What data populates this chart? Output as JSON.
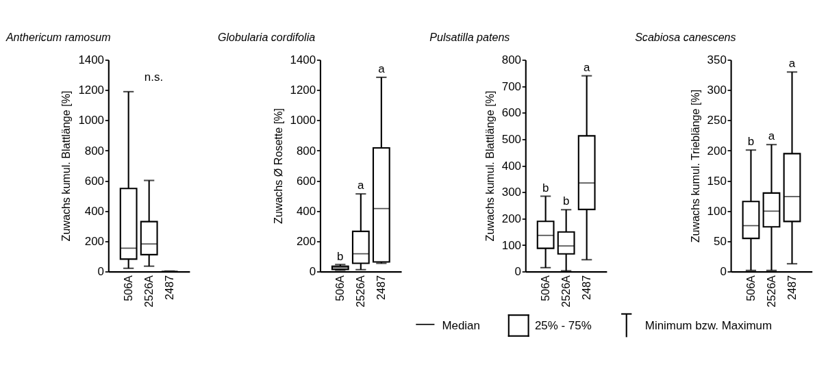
{
  "chart_data": [
    {
      "type": "box",
      "title": "Anthericum ramosum",
      "ylabel": "Zuwachs kumul. Blattlänge [%]",
      "categories": [
        "506A",
        "2526A",
        "2487"
      ],
      "boxes": [
        {
          "low": 22,
          "q1": 83,
          "median": 155,
          "q3": 550,
          "high": 1190
        },
        {
          "low": 36,
          "q1": 112,
          "median": 183,
          "q3": 331,
          "high": 603
        },
        {
          "low": 0,
          "q1": 0,
          "median": 0,
          "q3": 0,
          "high": 3
        }
      ],
      "ylim": [
        0,
        1400
      ],
      "yticks": [
        0,
        200,
        400,
        600,
        800,
        1000,
        1200,
        1400
      ],
      "annotations": [
        "n.s."
      ]
    },
    {
      "type": "box",
      "title": "Globularia cordifolia",
      "ylabel": "Zuwachs Ø Rosette [%]",
      "categories": [
        "506A",
        "2526A",
        "2487"
      ],
      "boxes": [
        {
          "low": 10,
          "q1": 15,
          "median": 28,
          "q3": 36,
          "high": 47
        },
        {
          "low": 13,
          "q1": 55,
          "median": 118,
          "q3": 266,
          "high": 514
        },
        {
          "low": 55,
          "q1": 64,
          "median": 417,
          "q3": 818,
          "high": 1285
        }
      ],
      "ylim": [
        0,
        1400
      ],
      "yticks": [
        0,
        200,
        400,
        600,
        800,
        1000,
        1200,
        1400
      ],
      "annotations": [
        {
          "text": "b",
          "x": "506A",
          "y": 47
        },
        {
          "text": "a",
          "x": "2526A",
          "y": 514
        },
        {
          "text": "a",
          "x": "2487",
          "y": 1285
        }
      ]
    },
    {
      "type": "box",
      "title": "Pulsatilla patens",
      "ylabel": "Zuwachs kumul. Blattlänge [%]",
      "categories": [
        "506A",
        "2526A",
        "2487"
      ],
      "boxes": [
        {
          "low": 15,
          "q1": 88,
          "median": 137,
          "q3": 190,
          "high": 285
        },
        {
          "low": 3,
          "q1": 67,
          "median": 97,
          "q3": 150,
          "high": 234
        },
        {
          "low": 45,
          "q1": 235,
          "median": 335,
          "q3": 513,
          "high": 740
        }
      ],
      "ylim": [
        0,
        800
      ],
      "yticks": [
        0,
        100,
        200,
        300,
        400,
        500,
        600,
        700,
        800
      ],
      "annotations": [
        {
          "text": "b",
          "x": "506A",
          "y": 285
        },
        {
          "text": "b",
          "x": "2526A",
          "y": 234
        },
        {
          "text": "a",
          "x": "2487",
          "y": 740
        }
      ]
    },
    {
      "type": "box",
      "title": "Scabiosa canescens",
      "ylabel": "Zuwachs kumul. Trieblänge [%]",
      "categories": [
        "506A",
        "2526A",
        "2487"
      ],
      "boxes": [
        {
          "low": 2,
          "q1": 55,
          "median": 76,
          "q3": 116,
          "high": 201
        },
        {
          "low": 2,
          "q1": 74,
          "median": 100,
          "q3": 130,
          "high": 210
        },
        {
          "low": 13,
          "q1": 83,
          "median": 124,
          "q3": 195,
          "high": 330
        }
      ],
      "ylim": [
        0,
        350
      ],
      "yticks": [
        0,
        50,
        100,
        150,
        200,
        250,
        300,
        350
      ],
      "annotations": [
        {
          "text": "b",
          "x": "506A",
          "y": 201
        },
        {
          "text": "a",
          "x": "2526A",
          "y": 210
        },
        {
          "text": "a",
          "x": "2487",
          "y": 330
        }
      ]
    },
    {
      "type": "other",
      "annotations": [
        "Median",
        "25% - 75%",
        "Minimum bzw. Maximum"
      ]
    }
  ]
}
